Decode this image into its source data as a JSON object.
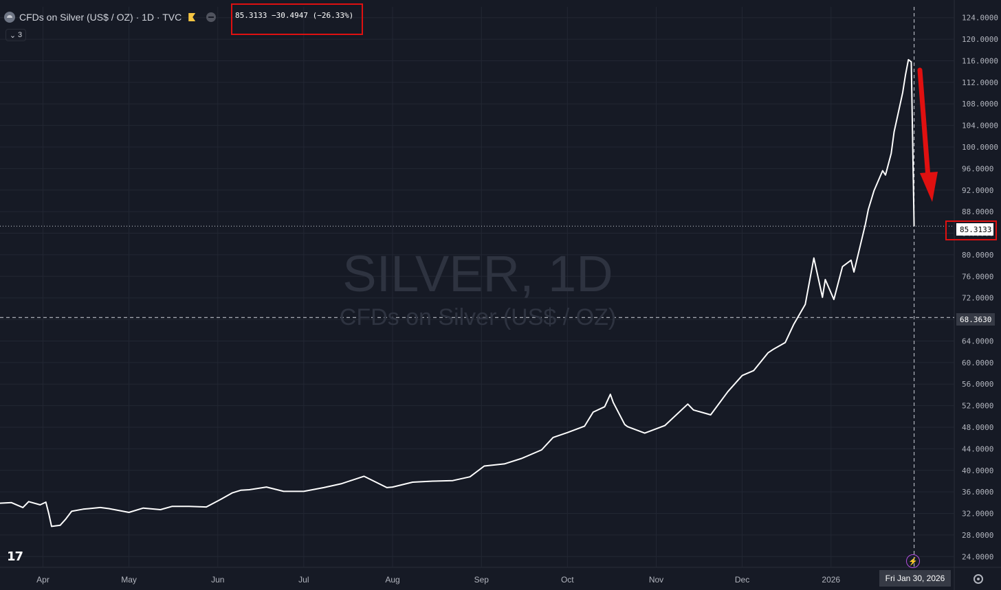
{
  "legend": {
    "symbol_text": "CFDs on Silver (US$ / OZ) · 1D · TVC",
    "ohlc_text": "85.3133 −30.4947 (−26.33%)",
    "indicator_count": "3"
  },
  "watermark": {
    "title": "SILVER, 1D",
    "subtitle": "CFDs on Silver (US$ / OZ)"
  },
  "price_tags": {
    "last": "85.3133",
    "crosshair": "68.3630"
  },
  "crosshair_date": "Fri Jan 30, 2026",
  "colors": {
    "background": "#161a25",
    "line": "#ffffff",
    "annotation": "#e01010",
    "grid": "#222733"
  },
  "chart_data": {
    "type": "line",
    "title": "",
    "xlabel": "",
    "ylabel": "",
    "ylim": [
      22,
      126
    ],
    "xlim": [
      "2025-03-17",
      "2026-02-13"
    ],
    "grid": true,
    "x_tick_labels": [
      {
        "label": "Apr",
        "date": "2025-04-01"
      },
      {
        "label": "May",
        "date": "2025-05-01"
      },
      {
        "label": "Jun",
        "date": "2025-06-01"
      },
      {
        "label": "Jul",
        "date": "2025-07-01"
      },
      {
        "label": "Aug",
        "date": "2025-08-01"
      },
      {
        "label": "Sep",
        "date": "2025-09-01"
      },
      {
        "label": "Oct",
        "date": "2025-10-01"
      },
      {
        "label": "Nov",
        "date": "2025-11-01"
      },
      {
        "label": "Dec",
        "date": "2025-12-01"
      },
      {
        "label": "2026",
        "date": "2026-01-01"
      }
    ],
    "y_tick_labels": [
      "24.0000",
      "28.0000",
      "32.0000",
      "36.0000",
      "40.0000",
      "44.0000",
      "48.0000",
      "52.0000",
      "56.0000",
      "60.0000",
      "64.0000",
      "68.0000",
      "72.0000",
      "76.0000",
      "80.0000",
      "84.0000",
      "88.0000",
      "92.0000",
      "96.0000",
      "100.0000",
      "104.0000",
      "108.0000",
      "112.0000",
      "116.0000",
      "120.0000",
      "124.0000"
    ],
    "series": [
      {
        "x": [
          "2025-03-17",
          "2025-03-21",
          "2025-03-25",
          "2025-03-27",
          "2025-03-31",
          "2025-04-02",
          "2025-04-03",
          "2025-04-04",
          "2025-04-07",
          "2025-04-09",
          "2025-04-11",
          "2025-04-15",
          "2025-04-21",
          "2025-04-24",
          "2025-05-01",
          "2025-05-06",
          "2025-05-12",
          "2025-05-16",
          "2025-05-22",
          "2025-05-28",
          "2025-06-02",
          "2025-06-06",
          "2025-06-09",
          "2025-06-12",
          "2025-06-18",
          "2025-06-24",
          "2025-07-01",
          "2025-07-08",
          "2025-07-14",
          "2025-07-18",
          "2025-07-22",
          "2025-07-30",
          "2025-08-01",
          "2025-08-08",
          "2025-08-15",
          "2025-08-22",
          "2025-08-28",
          "2025-09-02",
          "2025-09-09",
          "2025-09-15",
          "2025-09-22",
          "2025-09-26",
          "2025-10-01",
          "2025-10-07",
          "2025-10-10",
          "2025-10-14",
          "2025-10-16",
          "2025-10-17",
          "2025-10-21",
          "2025-10-22",
          "2025-10-28",
          "2025-11-04",
          "2025-11-12",
          "2025-11-14",
          "2025-11-20",
          "2025-11-26",
          "2025-12-01",
          "2025-12-05",
          "2025-12-10",
          "2025-12-12",
          "2025-12-16",
          "2025-12-19",
          "2025-12-23",
          "2025-12-26",
          "2025-12-29",
          "2025-12-30",
          "2026-01-02",
          "2026-01-05",
          "2026-01-08",
          "2026-01-09",
          "2026-01-13",
          "2026-01-14",
          "2026-01-16",
          "2026-01-19",
          "2026-01-20",
          "2026-01-22",
          "2026-01-23",
          "2026-01-26",
          "2026-01-27",
          "2026-01-28",
          "2026-01-29",
          "2026-01-30"
        ],
        "y": [
          33.9,
          34.0,
          33.1,
          34.2,
          33.6,
          34.1,
          32.0,
          29.6,
          29.8,
          31.0,
          32.4,
          32.8,
          33.1,
          32.9,
          32.2,
          33.0,
          32.7,
          33.3,
          33.3,
          33.2,
          34.6,
          35.8,
          36.3,
          36.4,
          36.9,
          36.1,
          36.1,
          36.8,
          37.5,
          38.2,
          38.9,
          36.8,
          36.9,
          37.8,
          38.0,
          38.1,
          38.8,
          40.8,
          41.2,
          42.2,
          43.8,
          46.1,
          47.0,
          48.2,
          50.8,
          51.8,
          54.1,
          52.6,
          48.5,
          48.1,
          46.9,
          48.3,
          52.3,
          51.2,
          50.3,
          54.6,
          57.6,
          58.5,
          61.8,
          62.5,
          63.7,
          67.1,
          70.8,
          79.4,
          72.1,
          75.4,
          71.7,
          77.8,
          79.0,
          76.8,
          85.7,
          88.4,
          91.9,
          95.6,
          94.8,
          98.8,
          102.8,
          110.1,
          113.4,
          116.2,
          115.8,
          85.3
        ]
      }
    ],
    "annotations": [
      {
        "type": "horizontal-line",
        "label": "85.3133",
        "y": 85.3133,
        "style": "dotted"
      },
      {
        "type": "horizontal-line",
        "label": "68.3630",
        "y": 68.363,
        "style": "dashed"
      },
      {
        "type": "vertical-line",
        "x": "2026-01-30",
        "style": "dashed"
      },
      {
        "type": "arrow",
        "direction": "down",
        "color": "#e01010"
      }
    ]
  }
}
